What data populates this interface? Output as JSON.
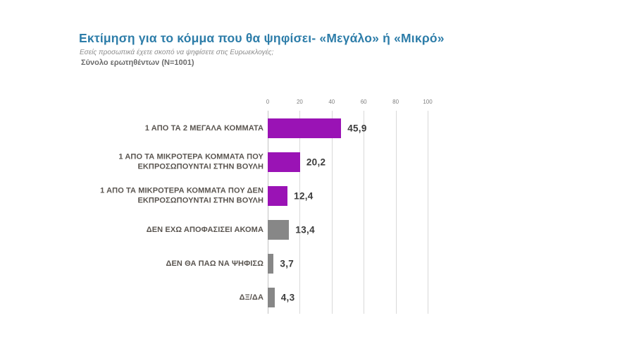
{
  "header": {
    "title": "Εκτίμηση για το κόμμα που θα ψηφίσει- «Μεγάλο» ή «Μικρό»",
    "subtitle": "Εσείς προσωπικά έχετε σκοπό να ψηφίσετε στις Ευρωεκλογές;",
    "sample": "Σύνολο ερωτηθέντων (N=1001)"
  },
  "colors": {
    "title_blue": "#2d7da9",
    "bar_purple": "#9a13b5",
    "bar_gray": "#878787",
    "value_text": "#3b3b3b",
    "category_text": "#5a5550",
    "gridline": "#d9d9d9"
  },
  "chart_data": {
    "type": "bar",
    "orientation": "horizontal",
    "title": "Εκτίμηση για το κόμμα που θα ψηφίσει- «Μεγάλο» ή «Μικρό»",
    "xlabel": "",
    "ylabel": "",
    "xlim": [
      0,
      100
    ],
    "x_ticks": [
      0,
      20,
      40,
      60,
      80,
      100
    ],
    "grid": "vertical",
    "legend": "none",
    "categories": [
      "1 ΑΠΟ ΤΑ 2 ΜΕΓΑΛΑ ΚΟΜΜΑΤΑ",
      "1 ΑΠΟ ΤΑ ΜΙΚΡΟΤΕΡΑ ΚΟΜΜΑΤΑ ΠΟΥ ΕΚΠΡΟΣΩΠΟΥΝΤΑΙ ΣΤΗΝ ΒΟΥΛΗ",
      "1 ΑΠΟ ΤΑ ΜΙΚΡΟΤΕΡΑ ΚΟΜΜΑΤΑ ΠΟΥ ΔΕΝ ΕΚΠΡΟΣΩΠΟΥΝΤΑΙ ΣΤΗΝ ΒΟΥΛΗ",
      "ΔΕΝ ΕΧΩ ΑΠΟΦΑΣΙΣΕΙ ΑΚΟΜΑ",
      "ΔΕΝ ΘΑ ΠΑΩ ΝΑ ΨΗΦΙΣΩ",
      "ΔΞ/ΔΑ"
    ],
    "values": [
      45.9,
      20.2,
      12.4,
      13.4,
      3.7,
      4.3
    ],
    "value_labels": [
      "45,9",
      "20,2",
      "12,4",
      "13,4",
      "3,7",
      "4,3"
    ],
    "bar_colors": [
      "#9a13b5",
      "#9a13b5",
      "#9a13b5",
      "#878787",
      "#878787",
      "#878787"
    ]
  }
}
